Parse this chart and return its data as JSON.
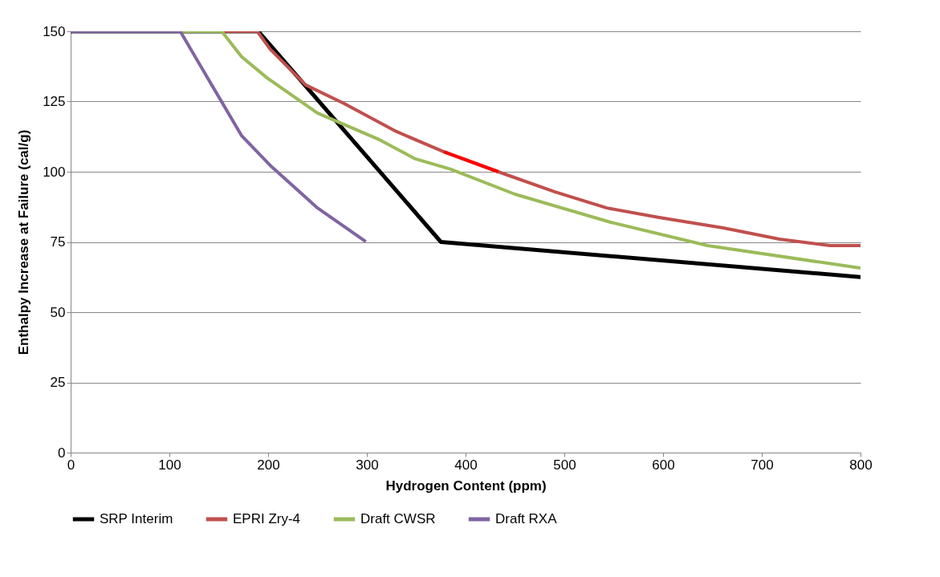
{
  "chart_data": {
    "type": "line",
    "xlabel": "Hydrogen Content (ppm)",
    "ylabel": "Enthalpy Increase at Failure (cal/g)",
    "xlim": [
      0,
      800
    ],
    "xticks": [
      0,
      100,
      200,
      300,
      400,
      500,
      600,
      700,
      800
    ],
    "ylim": [
      0,
      150
    ],
    "yticks": [
      0,
      25,
      50,
      75,
      100,
      125,
      150
    ],
    "grid": "y",
    "legend": "bottom",
    "line_style": "solid",
    "marker": "none",
    "series": [
      {
        "name": "SRP Interim",
        "color": "#000000",
        "x": [
          0,
          190,
          375,
          800
        ],
        "values": [
          150,
          150,
          75,
          62.5
        ]
      },
      {
        "name": "EPRI Zry-4",
        "color": "#c0504d",
        "x": [
          0,
          189,
          202,
          238,
          277,
          330,
          378,
          433,
          490,
          543,
          596,
          661,
          718,
          769,
          800
        ],
        "values": [
          150,
          150,
          143.7,
          130.9,
          124.3,
          114.3,
          107.1,
          100,
          92.9,
          87.1,
          83.7,
          80,
          76,
          73.7,
          73.7
        ]
      },
      {
        "name": "Draft CWSR",
        "color": "#9bbb59",
        "x": [
          0,
          153,
          173,
          199,
          250,
          311,
          349,
          385,
          450,
          547,
          645,
          800
        ],
        "values": [
          150,
          150,
          141,
          133.4,
          120.9,
          111.7,
          104.6,
          100.9,
          92,
          82,
          73.7,
          65.7
        ]
      },
      {
        "name": "Draft RXA",
        "color": "#8064a2",
        "x": [
          0,
          111,
          173,
          202,
          250,
          299
        ],
        "values": [
          150,
          150,
          112.9,
          102.3,
          87.1,
          75.1
        ]
      },
      {
        "color": "#ff0000",
        "x": [
          378,
          433
        ],
        "values": [
          107.1,
          100
        ]
      }
    ]
  }
}
